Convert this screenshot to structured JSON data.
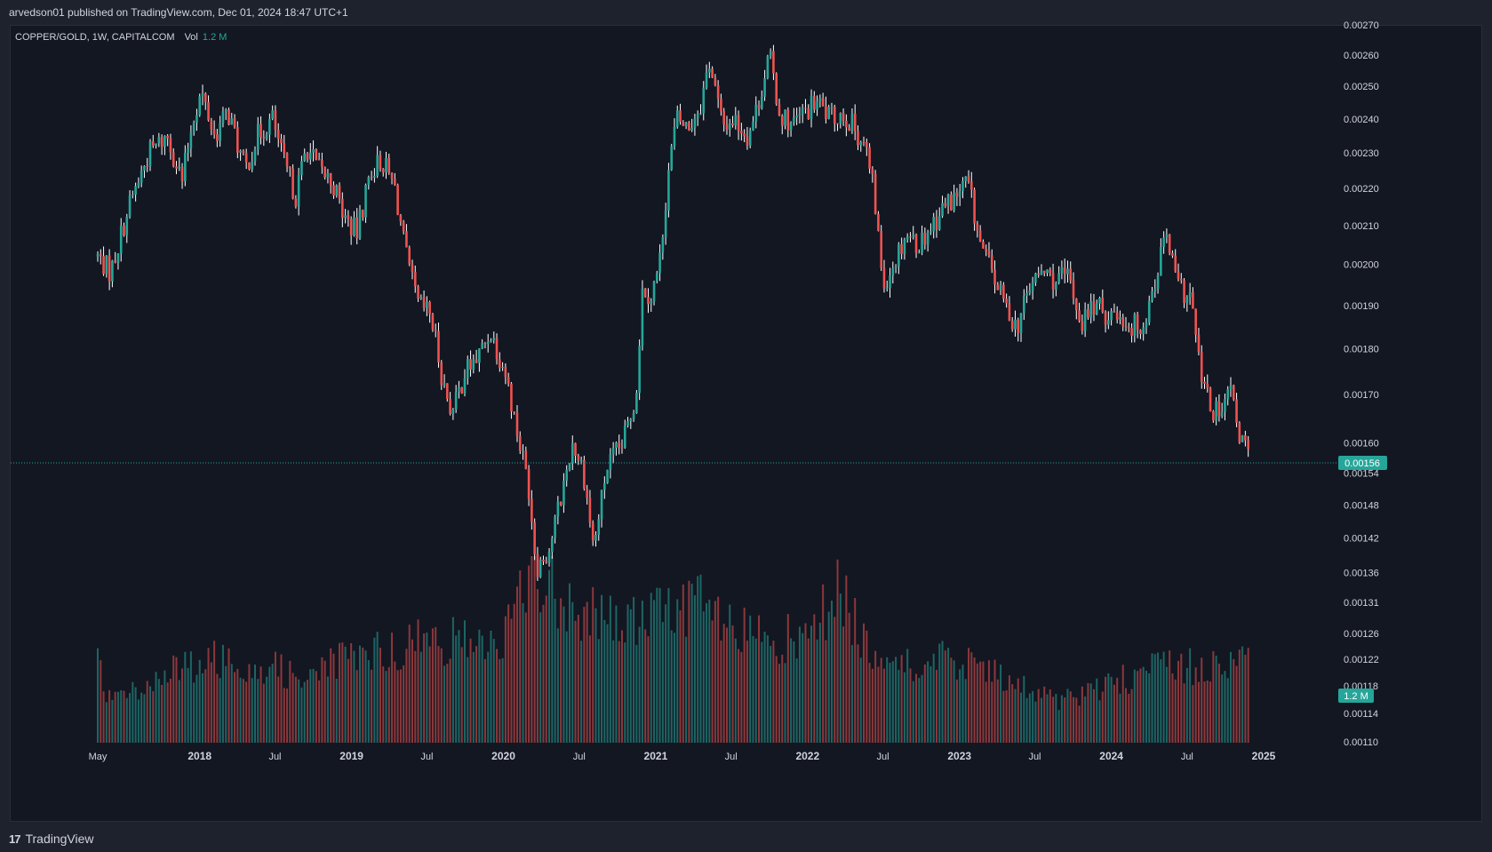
{
  "header": {
    "published": "arvedson01 published on TradingView.com, Dec 01, 2024 18:47 UTC+1"
  },
  "legend": {
    "symbol": "COPPER/GOLD, 1W, CAPITALCOM",
    "vol_label": "Vol",
    "vol_value": "1.2 M"
  },
  "footer": {
    "brand_mark": "17",
    "brand_name": "TradingView"
  },
  "colors": {
    "background": "#131722",
    "up": "#26a69a",
    "down": "#ef5350",
    "wick": "#ffffff",
    "price_line": "#26a69a"
  },
  "chart_data": {
    "type": "candlestick",
    "interval": "1W",
    "last_price": 0.00156,
    "last_price_label": "0.00156",
    "last_volume_label": "1.2 M",
    "y_axis": {
      "scale": "log",
      "range": [
        0.0011,
        0.0027
      ],
      "ticks": [
        0.0027,
        0.0026,
        0.0025,
        0.0024,
        0.0023,
        0.0022,
        0.0021,
        0.002,
        0.0019,
        0.0018,
        0.0017,
        0.0016,
        0.00154,
        0.00148,
        0.00142,
        0.00136,
        0.00131,
        0.00126,
        0.00122,
        0.00118,
        0.00114,
        0.0011
      ],
      "tick_labels": [
        "0.00270",
        "0.00260",
        "0.00250",
        "0.00240",
        "0.00230",
        "0.00220",
        "0.00210",
        "0.00200",
        "0.00190",
        "0.00180",
        "0.00170",
        "0.00160",
        "0.00154",
        "0.00148",
        "0.00142",
        "0.00136",
        "0.00131",
        "0.00126",
        "0.00122",
        "0.00118",
        "0.00114",
        "0.00110"
      ]
    },
    "x_axis": {
      "range": [
        "2017-05-01",
        "2025-01-01"
      ],
      "ticks": [
        {
          "date": "2017-05-01",
          "label": "May",
          "bold": false
        },
        {
          "date": "2018-01-01",
          "label": "2018",
          "bold": true
        },
        {
          "date": "2018-07-01",
          "label": "Jul",
          "bold": false
        },
        {
          "date": "2019-01-01",
          "label": "2019",
          "bold": true
        },
        {
          "date": "2019-07-01",
          "label": "Jul",
          "bold": false
        },
        {
          "date": "2020-01-01",
          "label": "2020",
          "bold": true
        },
        {
          "date": "2020-07-01",
          "label": "Jul",
          "bold": false
        },
        {
          "date": "2021-01-01",
          "label": "2021",
          "bold": true
        },
        {
          "date": "2021-07-01",
          "label": "Jul",
          "bold": false
        },
        {
          "date": "2022-01-01",
          "label": "2022",
          "bold": true
        },
        {
          "date": "2022-07-01",
          "label": "Jul",
          "bold": false
        },
        {
          "date": "2023-01-01",
          "label": "2023",
          "bold": true
        },
        {
          "date": "2023-07-01",
          "label": "Jul",
          "bold": false
        },
        {
          "date": "2024-01-01",
          "label": "2024",
          "bold": true
        },
        {
          "date": "2024-07-01",
          "label": "Jul",
          "bold": false
        },
        {
          "date": "2025-01-01",
          "label": "2025",
          "bold": true
        }
      ]
    },
    "price_path": [
      {
        "date": "2017-05-01",
        "close": 0.00202
      },
      {
        "date": "2017-06-01",
        "close": 0.00198
      },
      {
        "date": "2017-07-15",
        "close": 0.00215
      },
      {
        "date": "2017-09-01",
        "close": 0.0023
      },
      {
        "date": "2017-10-15",
        "close": 0.00235
      },
      {
        "date": "2017-11-20",
        "close": 0.00222
      },
      {
        "date": "2017-12-15",
        "close": 0.0024
      },
      {
        "date": "2018-01-05",
        "close": 0.00248
      },
      {
        "date": "2018-02-05",
        "close": 0.00235
      },
      {
        "date": "2018-03-10",
        "close": 0.00242
      },
      {
        "date": "2018-04-20",
        "close": 0.00225
      },
      {
        "date": "2018-05-20",
        "close": 0.00235
      },
      {
        "date": "2018-06-25",
        "close": 0.0024
      },
      {
        "date": "2018-07-20",
        "close": 0.00228
      },
      {
        "date": "2018-08-20",
        "close": 0.00218
      },
      {
        "date": "2018-09-15",
        "close": 0.00232
      },
      {
        "date": "2018-10-15",
        "close": 0.00225
      },
      {
        "date": "2018-11-15",
        "close": 0.00222
      },
      {
        "date": "2018-12-15",
        "close": 0.00212
      },
      {
        "date": "2019-01-15",
        "close": 0.00208
      },
      {
        "date": "2019-02-15",
        "close": 0.00225
      },
      {
        "date": "2019-03-15",
        "close": 0.00228
      },
      {
        "date": "2019-04-15",
        "close": 0.0022
      },
      {
        "date": "2019-05-15",
        "close": 0.002
      },
      {
        "date": "2019-06-10",
        "close": 0.0019
      },
      {
        "date": "2019-07-10",
        "close": 0.00188
      },
      {
        "date": "2019-08-10",
        "close": 0.00172
      },
      {
        "date": "2019-09-01",
        "close": 0.00166
      },
      {
        "date": "2019-10-01",
        "close": 0.00175
      },
      {
        "date": "2019-11-01",
        "close": 0.00178
      },
      {
        "date": "2019-12-01",
        "close": 0.00184
      },
      {
        "date": "2020-01-05",
        "close": 0.00175
      },
      {
        "date": "2020-02-01",
        "close": 0.00163
      },
      {
        "date": "2020-03-01",
        "close": 0.00152
      },
      {
        "date": "2020-03-20",
        "close": 0.00137
      },
      {
        "date": "2020-04-20",
        "close": 0.0014
      },
      {
        "date": "2020-05-20",
        "close": 0.0015
      },
      {
        "date": "2020-06-15",
        "close": 0.0016
      },
      {
        "date": "2020-07-10",
        "close": 0.00155
      },
      {
        "date": "2020-08-05",
        "close": 0.0014
      },
      {
        "date": "2020-09-05",
        "close": 0.00155
      },
      {
        "date": "2020-10-15",
        "close": 0.0016
      },
      {
        "date": "2020-11-15",
        "close": 0.0017
      },
      {
        "date": "2020-12-01",
        "close": 0.00195
      },
      {
        "date": "2020-12-20",
        "close": 0.00192
      },
      {
        "date": "2021-01-10",
        "close": 0.002
      },
      {
        "date": "2021-02-01",
        "close": 0.00225
      },
      {
        "date": "2021-02-20",
        "close": 0.0024
      },
      {
        "date": "2021-03-20",
        "close": 0.00237
      },
      {
        "date": "2021-04-20",
        "close": 0.00245
      },
      {
        "date": "2021-05-10",
        "close": 0.00258
      },
      {
        "date": "2021-06-10",
        "close": 0.00238
      },
      {
        "date": "2021-07-10",
        "close": 0.0024
      },
      {
        "date": "2021-08-10",
        "close": 0.00235
      },
      {
        "date": "2021-09-01",
        "close": 0.00243
      },
      {
        "date": "2021-10-01",
        "close": 0.0026
      },
      {
        "date": "2021-10-25",
        "close": 0.00242
      },
      {
        "date": "2021-11-25",
        "close": 0.00238
      },
      {
        "date": "2021-12-25",
        "close": 0.00242
      },
      {
        "date": "2022-01-25",
        "close": 0.00245
      },
      {
        "date": "2022-02-25",
        "close": 0.0024
      },
      {
        "date": "2022-03-25",
        "close": 0.00242
      },
      {
        "date": "2022-04-20",
        "close": 0.00238
      },
      {
        "date": "2022-05-20",
        "close": 0.00232
      },
      {
        "date": "2022-06-10",
        "close": 0.00218
      },
      {
        "date": "2022-07-01",
        "close": 0.00195
      },
      {
        "date": "2022-07-25",
        "close": 0.002
      },
      {
        "date": "2022-08-25",
        "close": 0.00208
      },
      {
        "date": "2022-09-25",
        "close": 0.00205
      },
      {
        "date": "2022-10-25",
        "close": 0.0021
      },
      {
        "date": "2022-11-25",
        "close": 0.00215
      },
      {
        "date": "2022-12-25",
        "close": 0.00218
      },
      {
        "date": "2023-01-20",
        "close": 0.00222
      },
      {
        "date": "2023-02-20",
        "close": 0.00205
      },
      {
        "date": "2023-03-20",
        "close": 0.00198
      },
      {
        "date": "2023-04-20",
        "close": 0.0019
      },
      {
        "date": "2023-05-20",
        "close": 0.00185
      },
      {
        "date": "2023-06-20",
        "close": 0.00195
      },
      {
        "date": "2023-07-20",
        "close": 0.00198
      },
      {
        "date": "2023-08-20",
        "close": 0.00196
      },
      {
        "date": "2023-09-20",
        "close": 0.00197
      },
      {
        "date": "2023-10-20",
        "close": 0.00186
      },
      {
        "date": "2023-11-20",
        "close": 0.0019
      },
      {
        "date": "2023-12-20",
        "close": 0.00188
      },
      {
        "date": "2024-01-20",
        "close": 0.00188
      },
      {
        "date": "2024-02-20",
        "close": 0.00185
      },
      {
        "date": "2024-03-20",
        "close": 0.00186
      },
      {
        "date": "2024-04-20",
        "close": 0.00198
      },
      {
        "date": "2024-05-10",
        "close": 0.00208
      },
      {
        "date": "2024-06-10",
        "close": 0.00194
      },
      {
        "date": "2024-07-10",
        "close": 0.00192
      },
      {
        "date": "2024-08-01",
        "close": 0.00175
      },
      {
        "date": "2024-08-25",
        "close": 0.00167
      },
      {
        "date": "2024-09-25",
        "close": 0.00165
      },
      {
        "date": "2024-10-10",
        "close": 0.00172
      },
      {
        "date": "2024-11-01",
        "close": 0.00162
      },
      {
        "date": "2024-11-25",
        "close": 0.00158
      },
      {
        "date": "2024-12-01",
        "close": 0.00156
      }
    ],
    "volume_profile": [
      {
        "date": "2017-05-01",
        "v": 0.45
      },
      {
        "date": "2017-06-01",
        "v": 0.25
      },
      {
        "date": "2017-09-01",
        "v": 0.35
      },
      {
        "date": "2017-12-01",
        "v": 0.45
      },
      {
        "date": "2018-03-01",
        "v": 0.5
      },
      {
        "date": "2018-06-01",
        "v": 0.45
      },
      {
        "date": "2018-09-01",
        "v": 0.4
      },
      {
        "date": "2019-01-01",
        "v": 0.5
      },
      {
        "date": "2019-07-01",
        "v": 0.6
      },
      {
        "date": "2020-01-01",
        "v": 0.6
      },
      {
        "date": "2020-03-15",
        "v": 1.05
      },
      {
        "date": "2020-05-01",
        "v": 0.9
      },
      {
        "date": "2020-07-01",
        "v": 0.8
      },
      {
        "date": "2020-10-01",
        "v": 0.7
      },
      {
        "date": "2021-01-01",
        "v": 0.75
      },
      {
        "date": "2021-04-01",
        "v": 0.85
      },
      {
        "date": "2021-07-01",
        "v": 0.65
      },
      {
        "date": "2022-01-01",
        "v": 0.6
      },
      {
        "date": "2022-03-15",
        "v": 0.9
      },
      {
        "date": "2022-06-01",
        "v": 0.55
      },
      {
        "date": "2022-09-01",
        "v": 0.45
      },
      {
        "date": "2023-01-01",
        "v": 0.5
      },
      {
        "date": "2023-05-01",
        "v": 0.35
      },
      {
        "date": "2023-09-01",
        "v": 0.25
      },
      {
        "date": "2024-01-01",
        "v": 0.35
      },
      {
        "date": "2024-05-01",
        "v": 0.45
      },
      {
        "date": "2024-09-01",
        "v": 0.45
      },
      {
        "date": "2024-12-01",
        "v": 0.48
      }
    ]
  }
}
